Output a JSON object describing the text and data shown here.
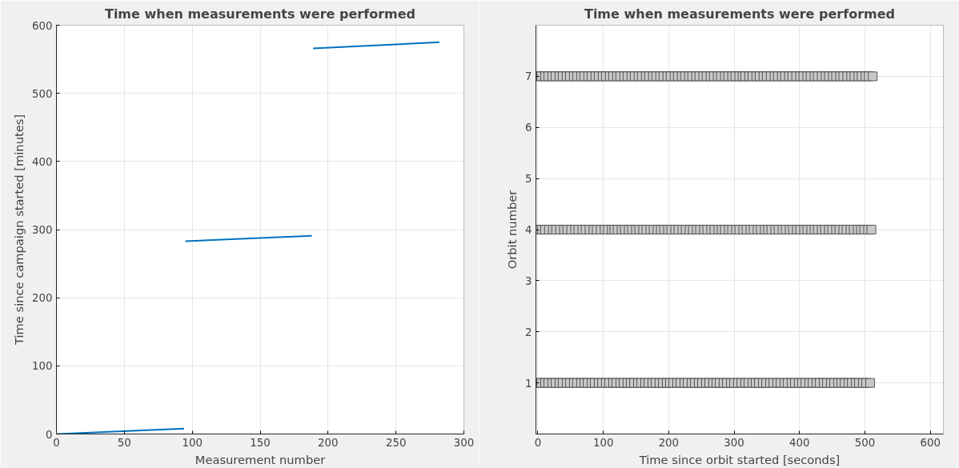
{
  "chart_data": [
    {
      "type": "line",
      "title": "Time when measurements were performed",
      "xlabel": "Measurement number",
      "ylabel": "Time since campaign started [minutes]",
      "xlim": [
        0,
        300
      ],
      "ylim": [
        0,
        600
      ],
      "xticks": [
        0,
        50,
        100,
        150,
        200,
        250,
        300
      ],
      "yticks": [
        0,
        100,
        200,
        300,
        400,
        500,
        600
      ],
      "grid": true,
      "marker": "none",
      "line_style": "solid",
      "series": [
        {
          "color": "#0072bd",
          "x": [
            1,
            94
          ],
          "values": [
            0,
            8
          ]
        },
        {
          "color": "#0072bd",
          "x": [
            95,
            188
          ],
          "values": [
            283,
            291
          ]
        },
        {
          "color": "#0072bd",
          "x": [
            189,
            282
          ],
          "values": [
            566,
            575
          ]
        }
      ]
    },
    {
      "type": "scatter",
      "title": "Time when measurements were performed",
      "xlabel": "Time since orbit started [seconds]",
      "ylabel": "Orbit number",
      "xlim": [
        -3,
        620
      ],
      "ylim": [
        0,
        8
      ],
      "xticks": [
        0,
        100,
        200,
        300,
        400,
        500,
        600
      ],
      "yticks": [
        1,
        2,
        3,
        4,
        5,
        6,
        7
      ],
      "grid": true,
      "marker": "square",
      "series": [
        {
          "color": "#c8c8c8",
          "x": [
            0,
            5,
            11,
            16,
            22,
            27,
            33,
            38,
            44,
            49,
            55,
            60,
            66,
            71,
            76,
            82,
            87,
            93,
            98,
            104,
            109,
            115,
            120,
            126,
            131,
            137,
            142,
            147,
            153,
            158,
            164,
            169,
            175,
            180,
            186,
            191,
            197,
            202,
            207,
            213,
            218,
            224,
            229,
            235,
            240,
            246,
            251,
            257,
            262,
            268,
            273,
            278,
            284,
            289,
            295,
            300,
            306,
            311,
            317,
            322,
            328,
            333,
            338,
            344,
            349,
            355,
            360,
            366,
            371,
            377,
            382,
            388,
            393,
            399,
            404,
            409,
            415,
            420,
            426,
            431,
            437,
            442,
            448,
            453,
            459,
            464,
            469,
            475,
            480,
            486,
            491,
            497,
            502,
            508
          ],
          "values": [
            1,
            1,
            1,
            1,
            1,
            1,
            1,
            1,
            1,
            1,
            1,
            1,
            1,
            1,
            1,
            1,
            1,
            1,
            1,
            1,
            1,
            1,
            1,
            1,
            1,
            1,
            1,
            1,
            1,
            1,
            1,
            1,
            1,
            1,
            1,
            1,
            1,
            1,
            1,
            1,
            1,
            1,
            1,
            1,
            1,
            1,
            1,
            1,
            1,
            1,
            1,
            1,
            1,
            1,
            1,
            1,
            1,
            1,
            1,
            1,
            1,
            1,
            1,
            1,
            1,
            1,
            1,
            1,
            1,
            1,
            1,
            1,
            1,
            1,
            1,
            1,
            1,
            1,
            1,
            1,
            1,
            1,
            1,
            1,
            1,
            1,
            1,
            1,
            1,
            1,
            1,
            1,
            1,
            1
          ]
        },
        {
          "color": "#c8c8c8",
          "x": [
            0,
            6,
            11,
            17,
            23,
            28,
            34,
            40,
            45,
            51,
            57,
            62,
            68,
            73,
            79,
            85,
            90,
            96,
            102,
            107,
            113,
            117,
            122,
            128,
            133,
            139,
            144,
            150,
            155,
            161,
            166,
            172,
            177,
            183,
            188,
            193,
            199,
            204,
            210,
            215,
            221,
            226,
            232,
            237,
            243,
            248,
            254,
            259,
            265,
            270,
            276,
            281,
            286,
            292,
            297,
            303,
            308,
            314,
            319,
            325,
            330,
            336,
            341,
            347,
            352,
            357,
            363,
            368,
            374,
            379,
            385,
            390,
            396,
            401,
            407,
            412,
            418,
            423,
            428,
            434,
            439,
            445,
            450,
            456,
            461,
            467,
            472,
            478,
            483,
            489,
            494,
            499,
            505,
            510
          ],
          "values": [
            4,
            4,
            4,
            4,
            4,
            4,
            4,
            4,
            4,
            4,
            4,
            4,
            4,
            4,
            4,
            4,
            4,
            4,
            4,
            4,
            4,
            4,
            4,
            4,
            4,
            4,
            4,
            4,
            4,
            4,
            4,
            4,
            4,
            4,
            4,
            4,
            4,
            4,
            4,
            4,
            4,
            4,
            4,
            4,
            4,
            4,
            4,
            4,
            4,
            4,
            4,
            4,
            4,
            4,
            4,
            4,
            4,
            4,
            4,
            4,
            4,
            4,
            4,
            4,
            4,
            4,
            4,
            4,
            4,
            4,
            4,
            4,
            4,
            4,
            4,
            4,
            4,
            4,
            4,
            4,
            4,
            4,
            4,
            4,
            4,
            4,
            4,
            4,
            4,
            4,
            4,
            4,
            4,
            4
          ]
        },
        {
          "color": "#c8c8c8",
          "x": [
            0,
            5,
            11,
            16,
            22,
            27,
            33,
            38,
            44,
            49,
            55,
            60,
            66,
            71,
            77,
            82,
            88,
            93,
            99,
            104,
            110,
            115,
            121,
            126,
            132,
            137,
            143,
            148,
            154,
            159,
            165,
            170,
            176,
            181,
            187,
            192,
            198,
            203,
            209,
            214,
            220,
            225,
            231,
            236,
            242,
            247,
            253,
            258,
            264,
            269,
            275,
            280,
            286,
            291,
            297,
            302,
            308,
            313,
            317,
            323,
            328,
            334,
            339,
            345,
            350,
            356,
            362,
            367,
            373,
            378,
            384,
            389,
            395,
            401,
            406,
            412,
            417,
            423,
            428,
            434,
            440,
            445,
            451,
            456,
            462,
            467,
            473,
            479,
            484,
            490,
            495,
            501,
            506,
            512
          ],
          "values": [
            7,
            7,
            7,
            7,
            7,
            7,
            7,
            7,
            7,
            7,
            7,
            7,
            7,
            7,
            7,
            7,
            7,
            7,
            7,
            7,
            7,
            7,
            7,
            7,
            7,
            7,
            7,
            7,
            7,
            7,
            7,
            7,
            7,
            7,
            7,
            7,
            7,
            7,
            7,
            7,
            7,
            7,
            7,
            7,
            7,
            7,
            7,
            7,
            7,
            7,
            7,
            7,
            7,
            7,
            7,
            7,
            7,
            7,
            7,
            7,
            7,
            7,
            7,
            7,
            7,
            7,
            7,
            7,
            7,
            7,
            7,
            7,
            7,
            7,
            7,
            7,
            7,
            7,
            7,
            7,
            7,
            7,
            7,
            7,
            7,
            7,
            7,
            7,
            7,
            7,
            7,
            7,
            7,
            7
          ]
        }
      ]
    }
  ]
}
